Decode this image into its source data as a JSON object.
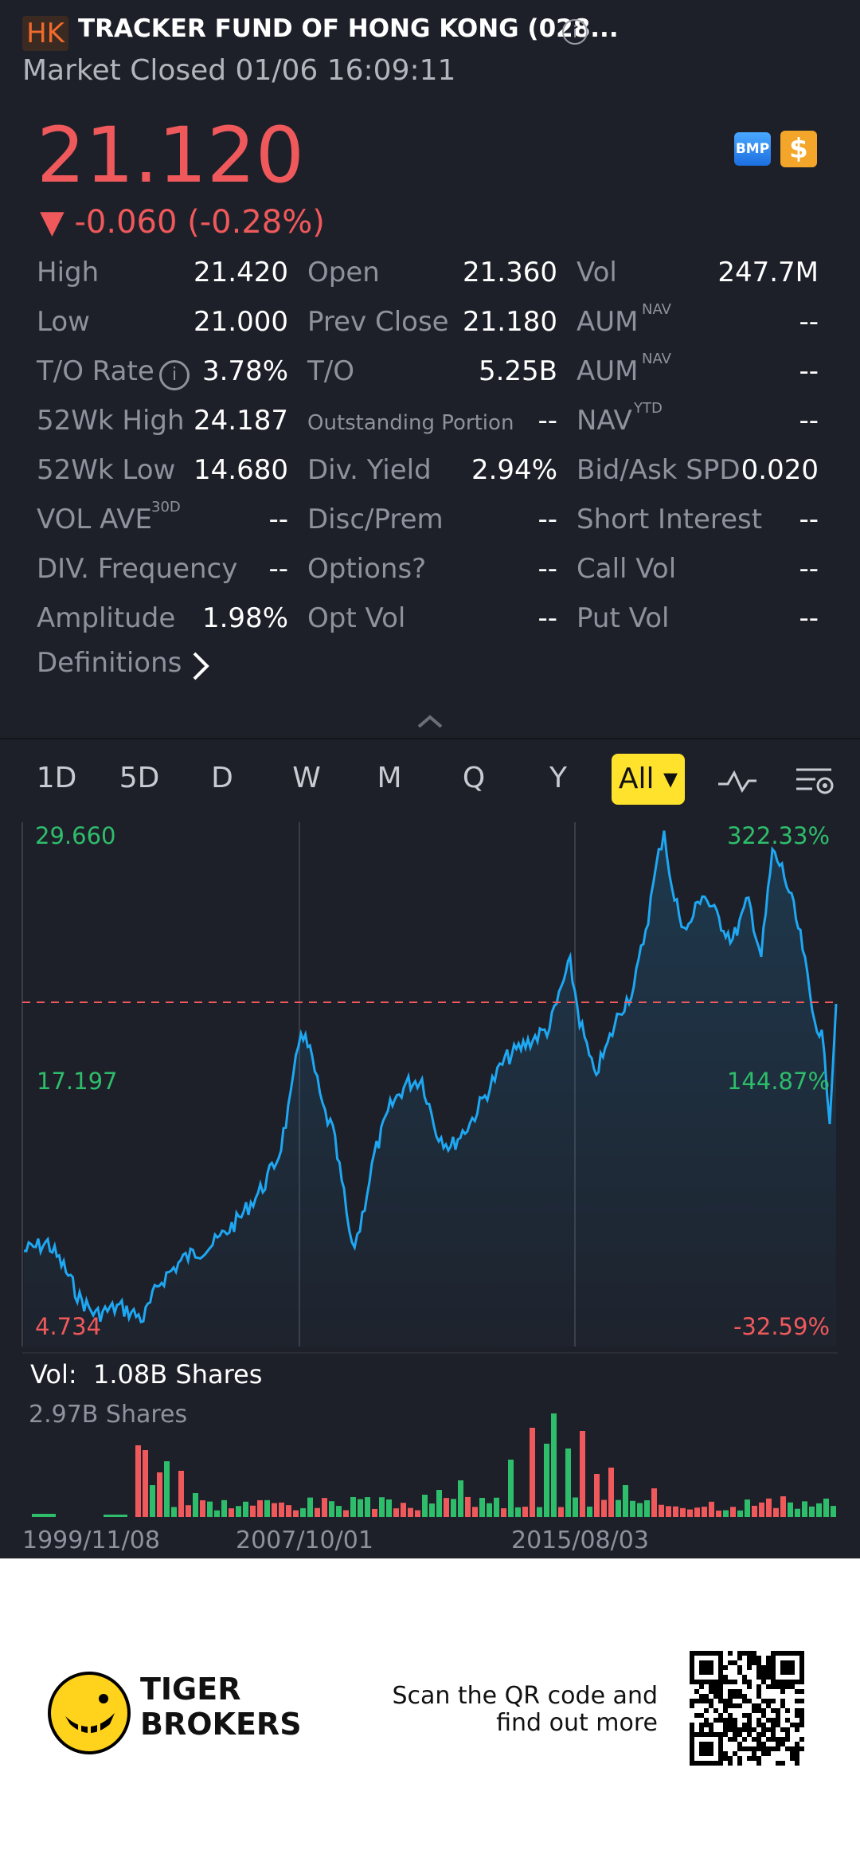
{
  "header": {
    "market_badge": "HK",
    "title": "TRACKER FUND OF HONG KONG (028...",
    "status": "Market Closed 01/06 16:09:11"
  },
  "quote": {
    "price": "21.120",
    "change": "▼ -0.060 (-0.28%)",
    "badge1": "BMP",
    "badge2": "$"
  },
  "stats": {
    "rows": [
      [
        {
          "label": "High",
          "value": "21.420"
        },
        {
          "label": "Open",
          "value": "21.360"
        },
        {
          "label": "Vol",
          "value": "247.7M"
        }
      ],
      [
        {
          "label": "Low",
          "value": "21.000"
        },
        {
          "label": "Prev Close",
          "value": "21.180"
        },
        {
          "label": "AUM",
          "sup": "NAV",
          "value": "--"
        }
      ],
      [
        {
          "label": "T/O Rate",
          "value": "3.78%"
        },
        {
          "label": "T/O",
          "value": "5.25B"
        },
        {
          "label": "AUM",
          "sup": "NAV",
          "value": "--"
        }
      ],
      [
        {
          "label": "52Wk High",
          "value": "24.187"
        },
        {
          "label": "Outstanding Portion",
          "value": "--"
        },
        {
          "label": "NAV",
          "sup": "YTD",
          "value": "--"
        }
      ],
      [
        {
          "label": "52Wk Low",
          "value": "14.680"
        },
        {
          "label": "Div. Yield",
          "value": "2.94%"
        },
        {
          "label": "Bid/Ask SPD",
          "value": "0.020"
        }
      ],
      [
        {
          "label": "VOL AVE",
          "sup": "30D",
          "value": "--"
        },
        {
          "label": "Disc/Prem",
          "value": "--"
        },
        {
          "label": "Short Interest",
          "value": "--"
        }
      ],
      [
        {
          "label": "DIV. Frequency",
          "value": "--"
        },
        {
          "label": "Options?",
          "value": "--"
        },
        {
          "label": "Call Vol",
          "value": "--"
        }
      ],
      [
        {
          "label": "Amplitude",
          "value": "1.98%"
        },
        {
          "label": "Opt Vol",
          "value": "--"
        },
        {
          "label": "Put Vol",
          "value": "--"
        }
      ]
    ],
    "definitions": "Definitions"
  },
  "tabs": [
    "1D",
    "5D",
    "D",
    "W",
    "M",
    "Q",
    "Y"
  ],
  "active_tab": "All",
  "chart": {
    "left_top": "29.660",
    "left_mid": "17.197",
    "left_bottom": "4.734",
    "right_top": "322.33%",
    "right_mid": "144.87%",
    "right_bottom": "-32.59%",
    "volume_label": "Vol:",
    "volume_value": "1.08B Shares",
    "volume_max": "2.97B Shares",
    "dates": [
      "1999/11/08",
      "2007/10/01",
      "2015/08/03"
    ]
  },
  "colors": {
    "up": "#2ebd6b",
    "down": "#f0595b",
    "line": "#1ea7f2",
    "bg": "#1e2029"
  },
  "footer": {
    "brand_line1": "TIGER",
    "brand_line2": "BROKERS",
    "scan_text": "Scan the QR code and find out more"
  }
}
